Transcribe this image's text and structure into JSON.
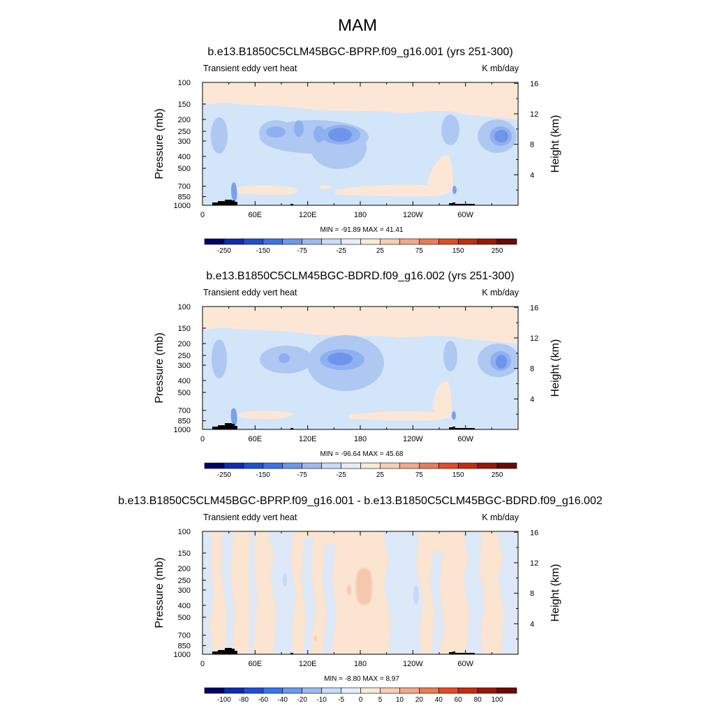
{
  "figure": {
    "title": "MAM"
  },
  "chart_data": [
    {
      "type": "heatmap",
      "title": "b.e13.B1850C5CLM45BGC-BPRP.f09_g16.001 (yrs 251-300)",
      "left_label": "Transient eddy vert heat",
      "right_label": "K mb/day",
      "ylabel": "Pressure (mb)",
      "ylabel_right": "Height (km)",
      "x_ticks": [
        "0",
        "60E",
        "120E",
        "180",
        "120W",
        "60W"
      ],
      "y_ticks": [
        "100",
        "150",
        "200",
        "250",
        "300",
        "400",
        "500",
        "700",
        "850",
        "1000"
      ],
      "height_ticks": [
        "16",
        "12",
        "8",
        "4"
      ],
      "minmax": "MIN = -91.89  MAX =  41.41",
      "colorbar_labels": [
        "-250",
        "-150",
        "-75",
        "-25",
        "25",
        "75",
        "150",
        "250"
      ],
      "colorbar_colors": [
        "#02026b",
        "#0d2bb5",
        "#1f4fd9",
        "#3a73ee",
        "#6c98ef",
        "#9db9f2",
        "#c8dbf7",
        "#e4eefb",
        "#fbe8d7",
        "#f7cdb4",
        "#f2a887",
        "#ec7a58",
        "#e44a26",
        "#c82a0d",
        "#9d1606",
        "#6c0802"
      ],
      "ylim": [
        1000,
        100
      ],
      "xlim": [
        0,
        360
      ]
    },
    {
      "type": "heatmap",
      "title": "b.e13.B1850C5CLM45BGC-BDRD.f09_g16.002 (yrs 251-300)",
      "left_label": "Transient eddy vert heat",
      "right_label": "K mb/day",
      "ylabel": "Pressure (mb)",
      "ylabel_right": "Height (km)",
      "x_ticks": [
        "0",
        "60E",
        "120E",
        "180",
        "120W",
        "60W"
      ],
      "y_ticks": [
        "100",
        "150",
        "200",
        "250",
        "300",
        "400",
        "500",
        "700",
        "850",
        "1000"
      ],
      "height_ticks": [
        "16",
        "12",
        "8",
        "4"
      ],
      "minmax": "MIN = -96.64  MAX =  45.68",
      "colorbar_labels": [
        "-250",
        "-150",
        "-75",
        "-25",
        "25",
        "75",
        "150",
        "250"
      ],
      "colorbar_colors": [
        "#02026b",
        "#0d2bb5",
        "#1f4fd9",
        "#3a73ee",
        "#6c98ef",
        "#9db9f2",
        "#c8dbf7",
        "#e4eefb",
        "#fbe8d7",
        "#f7cdb4",
        "#f2a887",
        "#ec7a58",
        "#e44a26",
        "#c82a0d",
        "#9d1606",
        "#6c0802"
      ],
      "ylim": [
        1000,
        100
      ],
      "xlim": [
        0,
        360
      ]
    },
    {
      "type": "heatmap",
      "title": "b.e13.B1850C5CLM45BGC-BPRP.f09_g16.001 - b.e13.B1850C5CLM45BGC-BDRD.f09_g16.002",
      "left_label": "Transient eddy vert heat",
      "right_label": "K mb/day",
      "ylabel": "Pressure (mb)",
      "ylabel_right": "Height (km)",
      "x_ticks": [
        "0",
        "60E",
        "120E",
        "180",
        "120W",
        "60W"
      ],
      "y_ticks": [
        "100",
        "150",
        "200",
        "250",
        "300",
        "400",
        "500",
        "700",
        "850",
        "1000"
      ],
      "height_ticks": [
        "16",
        "12",
        "8",
        "4"
      ],
      "minmax": "MIN =  -8.80  MAX =   8.97",
      "colorbar_labels": [
        "-100",
        "-80",
        "-60",
        "-40",
        "-20",
        "-10",
        "-5",
        "0",
        "5",
        "10",
        "20",
        "40",
        "60",
        "80",
        "100"
      ],
      "colorbar_colors": [
        "#02026b",
        "#0d2bb5",
        "#1f4fd9",
        "#3a73ee",
        "#6c98ef",
        "#9db9f2",
        "#c8dbf7",
        "#e4eefb",
        "#fbe8d7",
        "#f7cdb4",
        "#f2a887",
        "#ec7a58",
        "#e44a26",
        "#c82a0d",
        "#9d1606",
        "#6c0802"
      ],
      "ylim": [
        1000,
        100
      ],
      "xlim": [
        0,
        360
      ]
    }
  ],
  "palette": {
    "base_light_blue": "#d3e5f9",
    "cap_peach": "#fce7d6",
    "mid_blue": "#aec8f2",
    "deep_blue": "#7aa0ee",
    "core_blue": "#5f88e8",
    "diff_blue": "#dde8f8",
    "diff_peach": "#fbe4d0",
    "diff_salmon": "#f6c7b0",
    "topography": "#000000"
  }
}
